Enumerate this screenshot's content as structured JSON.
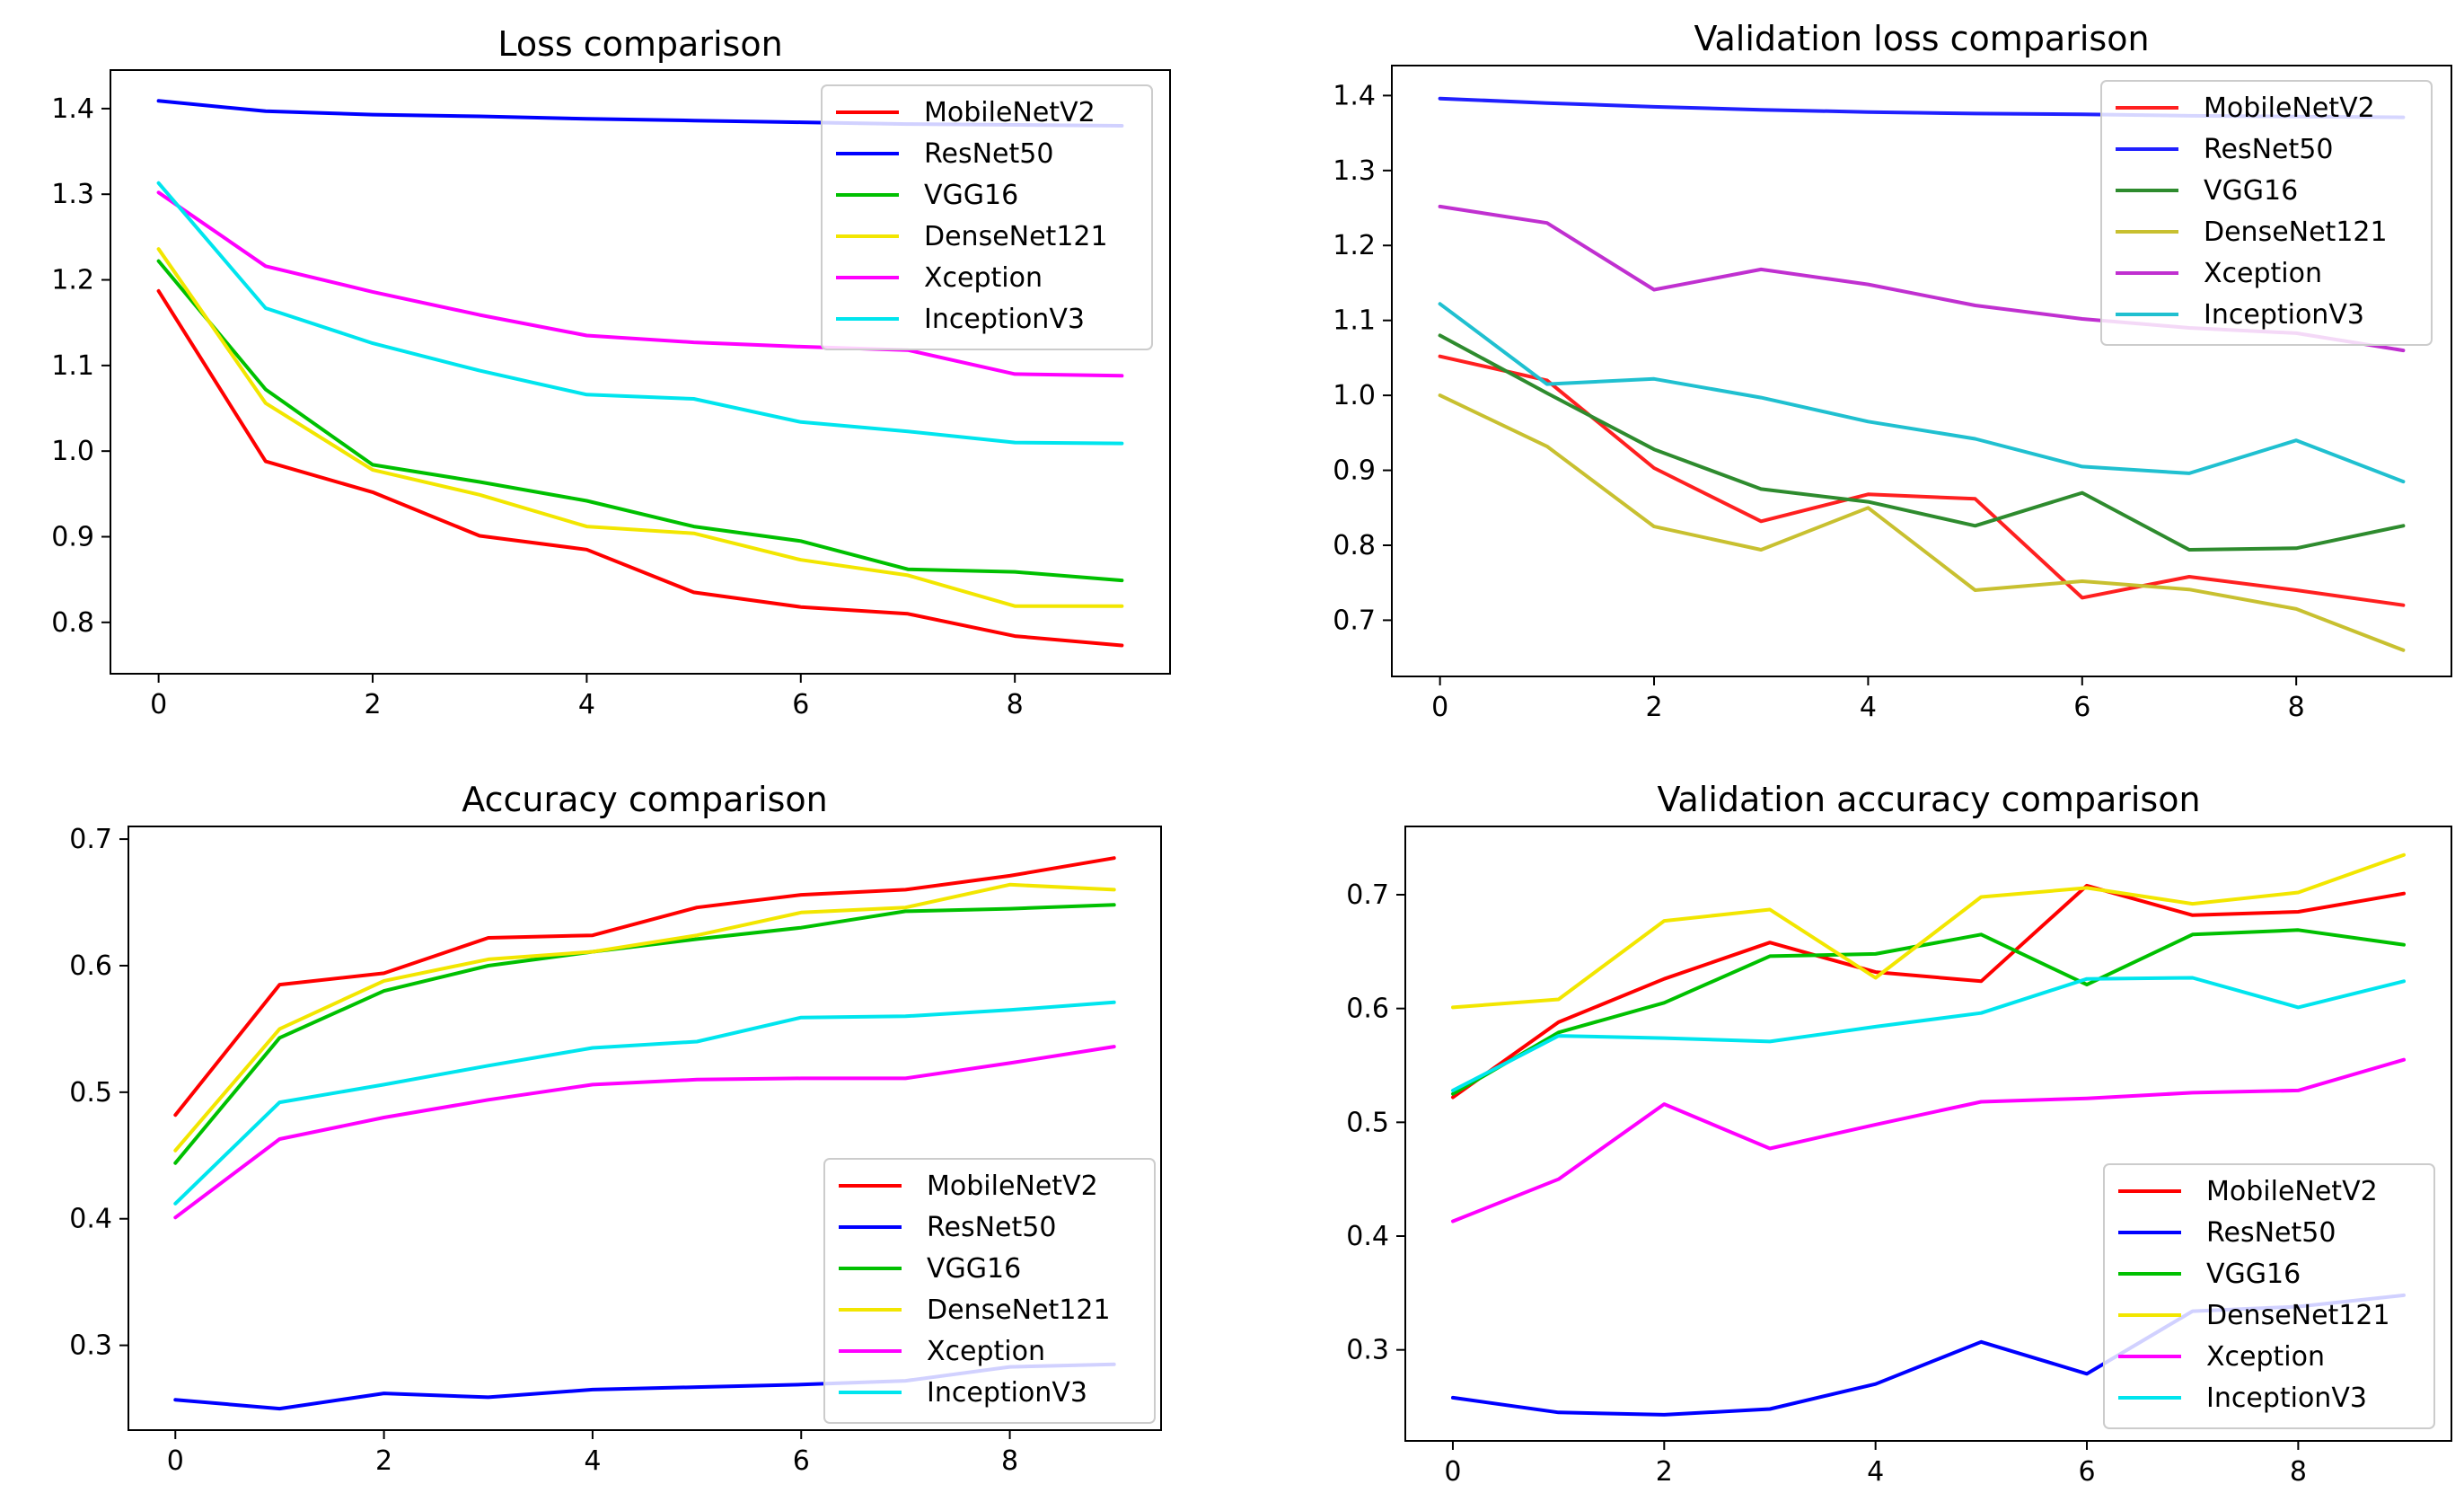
{
  "chart_data": [
    {
      "type": "line",
      "title": "Loss comparison",
      "xlabel": "",
      "ylabel": "",
      "x": [
        0,
        1,
        2,
        3,
        4,
        5,
        6,
        7,
        8,
        9
      ],
      "xlim": [
        -0.45,
        9.45
      ],
      "ylim": [
        0.74,
        1.445
      ],
      "xticks": [
        0,
        2,
        4,
        6,
        8
      ],
      "yticks": [
        0.8,
        0.9,
        1.0,
        1.1,
        1.2,
        1.3,
        1.4
      ],
      "x_tick_labels": [
        "0",
        "2",
        "4",
        "6",
        "8"
      ],
      "y_tick_labels": [
        "0.8",
        "0.9",
        "1.0",
        "1.1",
        "1.2",
        "1.3",
        "1.4"
      ],
      "grid": false,
      "legend_position": "upper right",
      "series": [
        {
          "name": "MobileNetV2",
          "color": "#ff0000",
          "values": [
            1.187,
            0.988,
            0.952,
            0.901,
            0.885,
            0.835,
            0.818,
            0.81,
            0.784,
            0.773
          ]
        },
        {
          "name": "ResNet50",
          "color": "#0000ff",
          "values": [
            1.409,
            1.397,
            1.393,
            1.391,
            1.388,
            1.386,
            1.384,
            1.382,
            1.381,
            1.38
          ]
        },
        {
          "name": "VGG16",
          "color": "#00c000",
          "values": [
            1.222,
            1.072,
            0.984,
            0.964,
            0.942,
            0.912,
            0.895,
            0.862,
            0.859,
            0.849
          ]
        },
        {
          "name": "DenseNet121",
          "color": "#f2e600",
          "values": [
            1.236,
            1.056,
            0.978,
            0.949,
            0.912,
            0.904,
            0.873,
            0.855,
            0.819,
            0.819
          ]
        },
        {
          "name": "Xception",
          "color": "#ff00ff",
          "values": [
            1.302,
            1.216,
            1.186,
            1.159,
            1.135,
            1.127,
            1.122,
            1.118,
            1.09,
            1.088
          ]
        },
        {
          "name": "InceptionV3",
          "color": "#00e5ee",
          "values": [
            1.313,
            1.167,
            1.126,
            1.094,
            1.066,
            1.061,
            1.034,
            1.023,
            1.01,
            1.009
          ]
        }
      ]
    },
    {
      "type": "line",
      "title": "Validation loss comparison",
      "xlabel": "",
      "ylabel": "",
      "x": [
        0,
        1,
        2,
        3,
        4,
        5,
        6,
        7,
        8,
        9
      ],
      "xlim": [
        -0.45,
        9.45
      ],
      "ylim": [
        0.625,
        1.44
      ],
      "xticks": [
        0,
        2,
        4,
        6,
        8
      ],
      "yticks": [
        0.7,
        0.8,
        0.9,
        1.0,
        1.1,
        1.2,
        1.3,
        1.4
      ],
      "x_tick_labels": [
        "0",
        "2",
        "4",
        "6",
        "8"
      ],
      "y_tick_labels": [
        "0.7",
        "0.8",
        "0.9",
        "1.0",
        "1.1",
        "1.2",
        "1.3",
        "1.4"
      ],
      "grid": false,
      "legend_position": "upper right",
      "series": [
        {
          "name": "MobileNetV2",
          "color": "#ff2020",
          "values": [
            1.052,
            1.02,
            0.903,
            0.832,
            0.868,
            0.862,
            0.73,
            0.758,
            0.74,
            0.72
          ]
        },
        {
          "name": "ResNet50",
          "color": "#2020ff",
          "values": [
            1.396,
            1.39,
            1.385,
            1.381,
            1.378,
            1.376,
            1.375,
            1.373,
            1.372,
            1.371
          ]
        },
        {
          "name": "VGG16",
          "color": "#2e8b2e",
          "values": [
            1.08,
            1.003,
            0.928,
            0.875,
            0.858,
            0.826,
            0.87,
            0.794,
            0.796,
            0.826
          ]
        },
        {
          "name": "DenseNet121",
          "color": "#c8c030",
          "values": [
            1.0,
            0.932,
            0.825,
            0.794,
            0.85,
            0.74,
            0.752,
            0.741,
            0.715,
            0.66
          ]
        },
        {
          "name": "Xception",
          "color": "#c030d0",
          "values": [
            1.252,
            1.23,
            1.141,
            1.168,
            1.148,
            1.12,
            1.102,
            1.09,
            1.083,
            1.06
          ]
        },
        {
          "name": "InceptionV3",
          "color": "#20c0d0",
          "values": [
            1.122,
            1.015,
            1.022,
            0.997,
            0.965,
            0.942,
            0.905,
            0.896,
            0.94,
            0.885
          ]
        }
      ]
    },
    {
      "type": "line",
      "title": "Accuracy comparison",
      "xlabel": "",
      "ylabel": "",
      "x": [
        0,
        1,
        2,
        3,
        4,
        5,
        6,
        7,
        8,
        9
      ],
      "xlim": [
        -0.45,
        9.45
      ],
      "ylim": [
        0.233,
        0.71
      ],
      "xticks": [
        0,
        2,
        4,
        6,
        8
      ],
      "yticks": [
        0.3,
        0.4,
        0.5,
        0.6,
        0.7
      ],
      "x_tick_labels": [
        "0",
        "2",
        "4",
        "6",
        "8"
      ],
      "y_tick_labels": [
        "0.3",
        "0.4",
        "0.5",
        "0.6",
        "0.7"
      ],
      "grid": false,
      "legend_position": "lower right",
      "series": [
        {
          "name": "MobileNetV2",
          "color": "#ff0000",
          "values": [
            0.482,
            0.585,
            0.594,
            0.622,
            0.624,
            0.646,
            0.656,
            0.66,
            0.671,
            0.685
          ]
        },
        {
          "name": "ResNet50",
          "color": "#0000ff",
          "values": [
            0.257,
            0.25,
            0.262,
            0.259,
            0.265,
            0.267,
            0.269,
            0.272,
            0.283,
            0.285
          ]
        },
        {
          "name": "VGG16",
          "color": "#00c000",
          "values": [
            0.444,
            0.543,
            0.58,
            0.6,
            0.611,
            0.621,
            0.63,
            0.643,
            0.645,
            0.648
          ]
        },
        {
          "name": "DenseNet121",
          "color": "#f2e600",
          "values": [
            0.454,
            0.55,
            0.588,
            0.605,
            0.611,
            0.624,
            0.642,
            0.646,
            0.664,
            0.66
          ]
        },
        {
          "name": "Xception",
          "color": "#ff00ff",
          "values": [
            0.401,
            0.463,
            0.48,
            0.494,
            0.506,
            0.51,
            0.511,
            0.511,
            0.523,
            0.536
          ]
        },
        {
          "name": "InceptionV3",
          "color": "#00e5ee",
          "values": [
            0.412,
            0.492,
            0.506,
            0.521,
            0.535,
            0.54,
            0.559,
            0.56,
            0.565,
            0.571
          ]
        }
      ]
    },
    {
      "type": "line",
      "title": "Validation accuracy comparison",
      "xlabel": "",
      "ylabel": "",
      "x": [
        0,
        1,
        2,
        3,
        4,
        5,
        6,
        7,
        8,
        9
      ],
      "xlim": [
        -0.45,
        9.45
      ],
      "ylim": [
        0.22,
        0.76
      ],
      "xticks": [
        0,
        2,
        4,
        6,
        8
      ],
      "yticks": [
        0.3,
        0.4,
        0.5,
        0.6,
        0.7
      ],
      "x_tick_labels": [
        "0",
        "2",
        "4",
        "6",
        "8"
      ],
      "y_tick_labels": [
        "0.3",
        "0.4",
        "0.5",
        "0.6",
        "0.7"
      ],
      "grid": false,
      "legend_position": "lower right",
      "series": [
        {
          "name": "MobileNetV2",
          "color": "#ff0000",
          "values": [
            0.522,
            0.588,
            0.626,
            0.658,
            0.632,
            0.624,
            0.708,
            0.682,
            0.685,
            0.701
          ]
        },
        {
          "name": "ResNet50",
          "color": "#0000ff",
          "values": [
            0.258,
            0.245,
            0.243,
            0.248,
            0.27,
            0.307,
            0.279,
            0.334,
            0.338,
            0.348
          ]
        },
        {
          "name": "VGG16",
          "color": "#00c000",
          "values": [
            0.525,
            0.579,
            0.605,
            0.646,
            0.648,
            0.665,
            0.621,
            0.665,
            0.669,
            0.656
          ]
        },
        {
          "name": "DenseNet121",
          "color": "#f2e600",
          "values": [
            0.601,
            0.608,
            0.677,
            0.687,
            0.627,
            0.698,
            0.706,
            0.692,
            0.702,
            0.735
          ]
        },
        {
          "name": "Xception",
          "color": "#ff00ff",
          "values": [
            0.413,
            0.45,
            0.516,
            0.477,
            0.498,
            0.518,
            0.521,
            0.526,
            0.528,
            0.555
          ]
        },
        {
          "name": "InceptionV3",
          "color": "#00e5ee",
          "values": [
            0.528,
            0.576,
            0.574,
            0.571,
            0.584,
            0.596,
            0.626,
            0.627,
            0.601,
            0.624
          ]
        }
      ]
    }
  ]
}
